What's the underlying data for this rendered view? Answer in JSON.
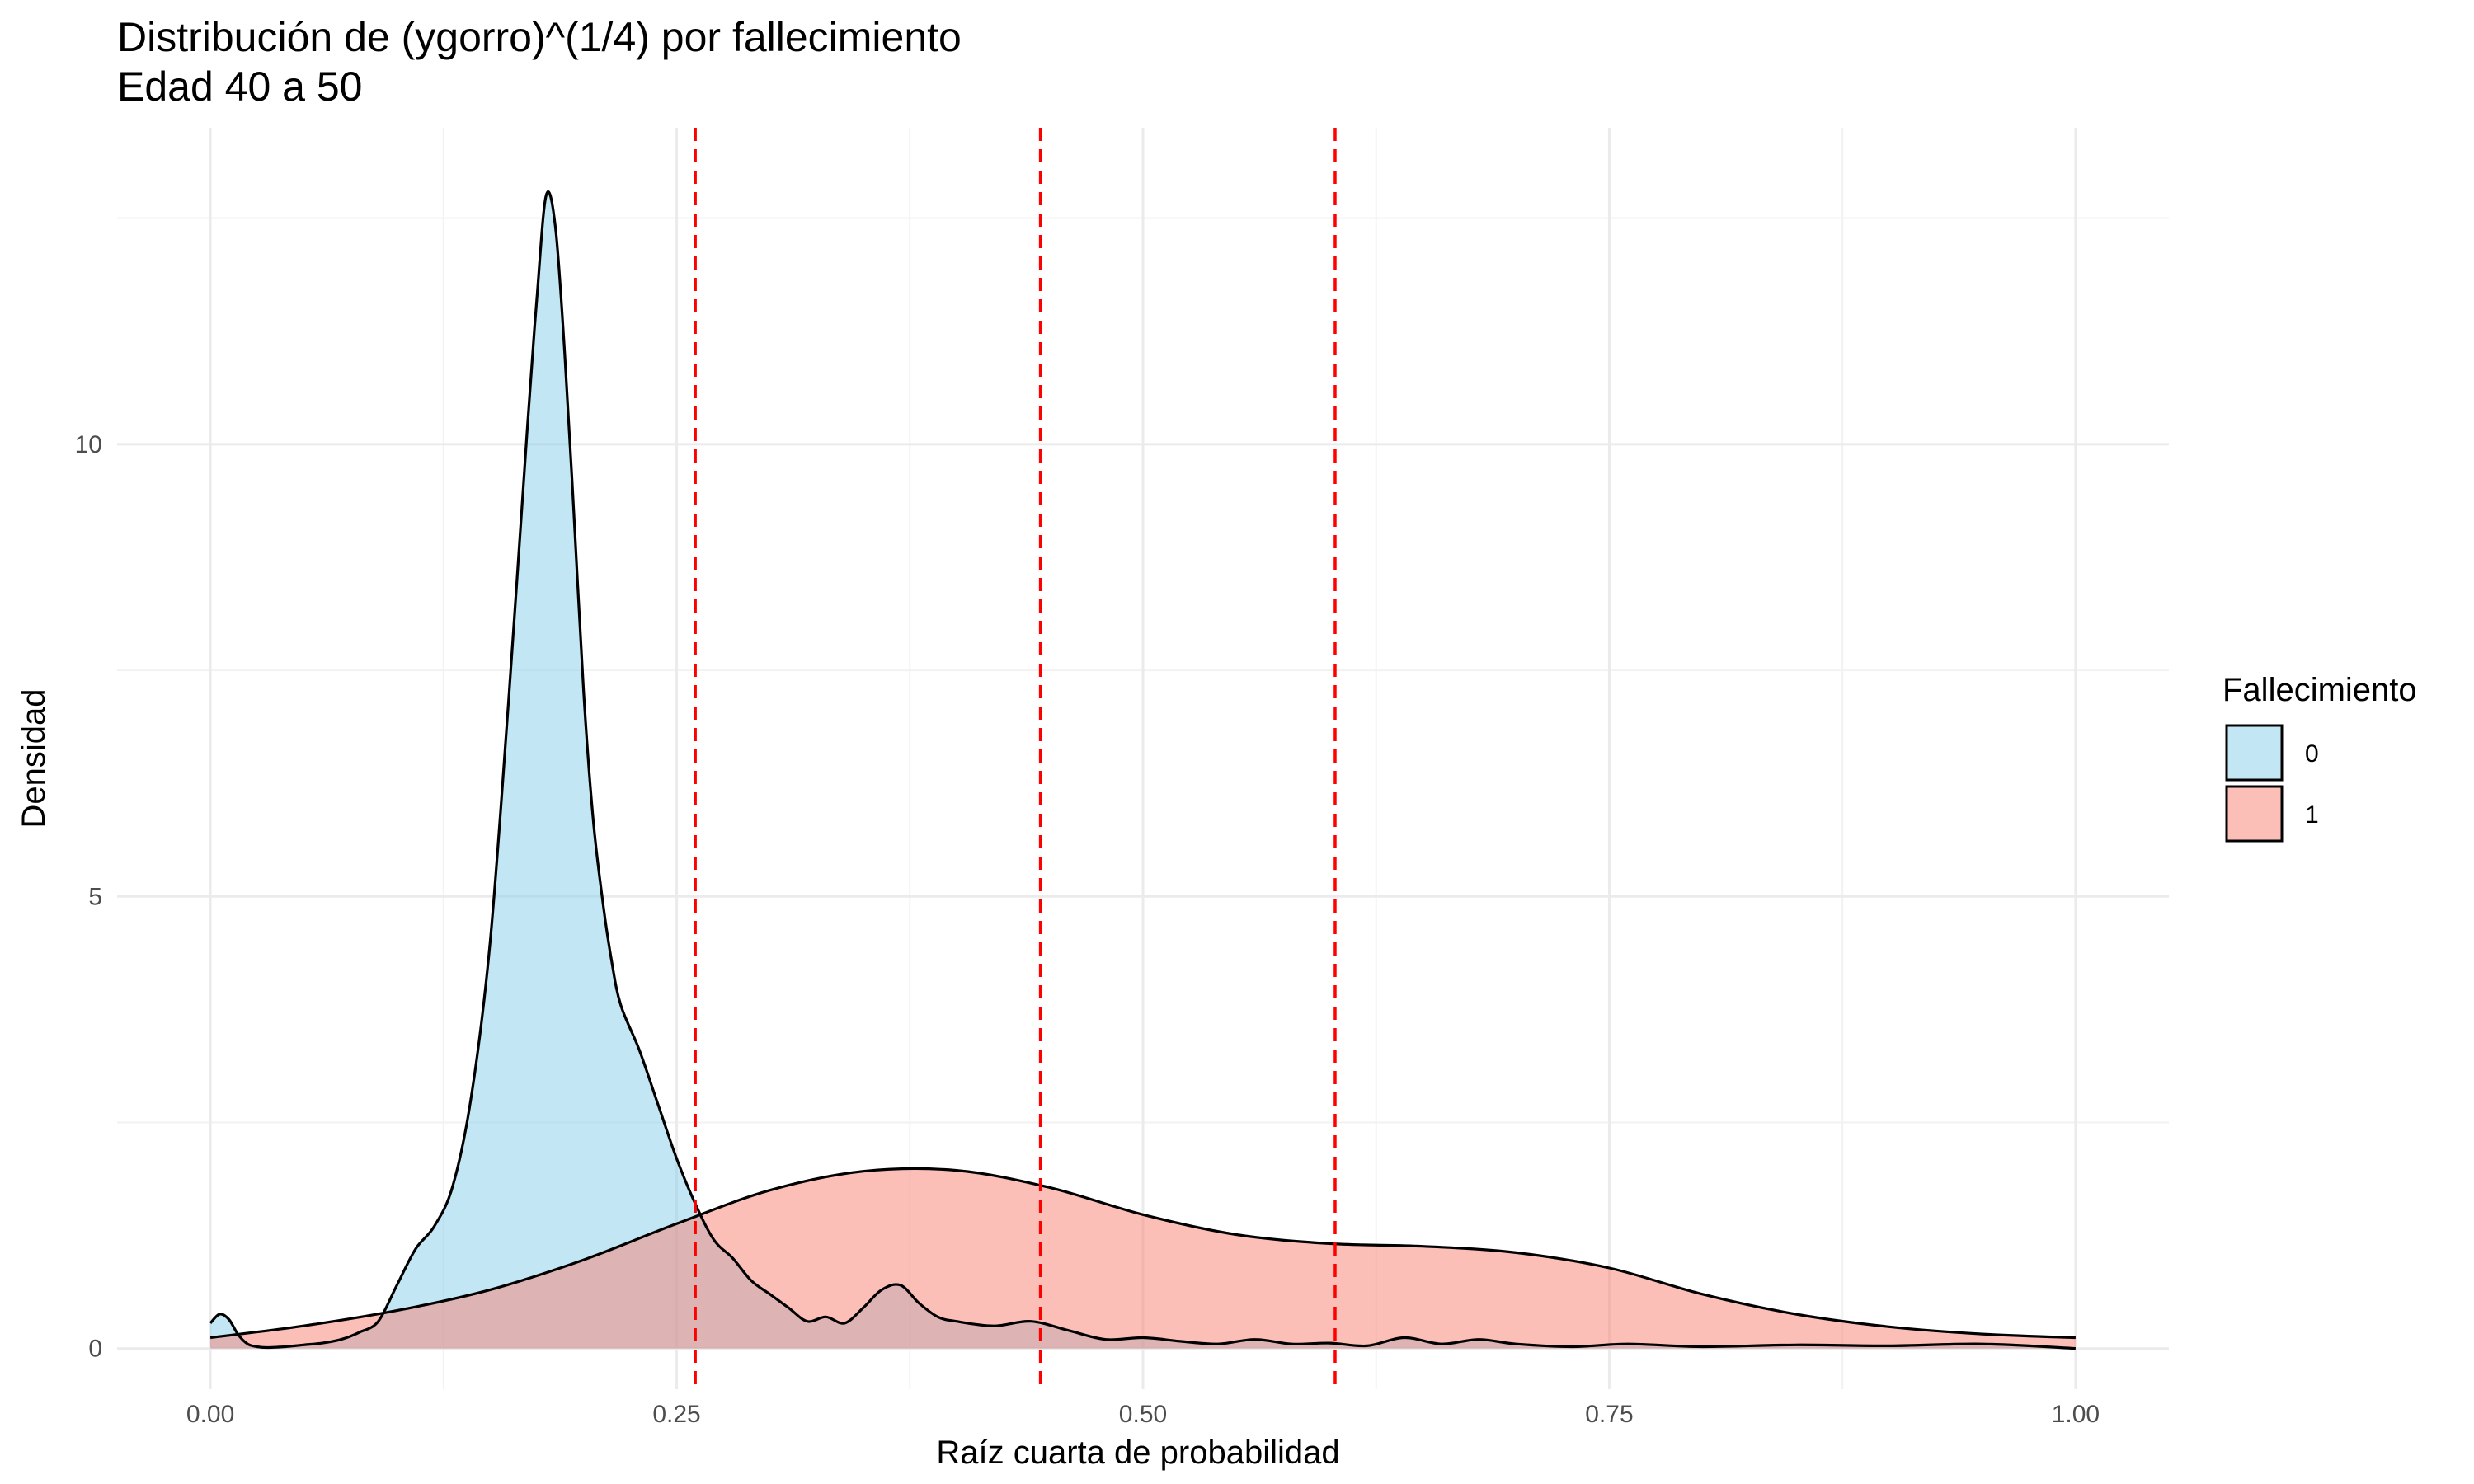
{
  "chart_data": {
    "type": "area",
    "title_lines": [
      "Distribución de (ygorro)^(1/4) por fallecimiento",
      "Edad 40 a 50"
    ],
    "xlabel": "Raíz cuarta de probabilidad",
    "ylabel": "Densidad",
    "xlim": [
      -0.05,
      1.05
    ],
    "ylim": [
      -0.45,
      13.5
    ],
    "x_ticks": [
      0,
      0.25,
      0.5,
      0.75,
      1
    ],
    "x_tick_labels": [
      "0.00",
      "0.25",
      "0.50",
      "0.75",
      "1.00"
    ],
    "y_ticks": [
      0,
      5,
      10
    ],
    "y_tick_labels": [
      "0",
      "5",
      "10"
    ],
    "grid": true,
    "legend": {
      "title": "Fallecimiento",
      "position": "right",
      "entries": [
        {
          "label": "0",
          "color": "#87ceeb"
        },
        {
          "label": "1",
          "color": "#fa8072"
        }
      ]
    },
    "vlines": {
      "values": [
        0.26,
        0.445,
        0.603
      ],
      "color": "#ff0000",
      "style": "dashed"
    },
    "series": [
      {
        "name": "0",
        "color": "#87ceeb",
        "opacity": 0.5,
        "x": [
          0.0,
          0.005,
          0.01,
          0.015,
          0.02,
          0.025,
          0.03,
          0.04,
          0.05,
          0.06,
          0.07,
          0.08,
          0.09,
          0.1,
          0.11,
          0.12,
          0.13,
          0.14,
          0.15,
          0.16,
          0.17,
          0.175,
          0.18,
          0.185,
          0.19,
          0.195,
          0.2,
          0.205,
          0.21,
          0.215,
          0.22,
          0.23,
          0.24,
          0.25,
          0.26,
          0.27,
          0.28,
          0.29,
          0.3,
          0.31,
          0.32,
          0.33,
          0.34,
          0.35,
          0.36,
          0.37,
          0.38,
          0.39,
          0.4,
          0.42,
          0.44,
          0.46,
          0.48,
          0.5,
          0.52,
          0.54,
          0.56,
          0.58,
          0.6,
          0.62,
          0.64,
          0.66,
          0.68,
          0.7,
          0.73,
          0.76,
          0.8,
          0.85,
          0.9,
          0.95,
          1.0
        ],
        "y": [
          0.28,
          0.38,
          0.32,
          0.15,
          0.05,
          0.02,
          0.01,
          0.02,
          0.04,
          0.06,
          0.1,
          0.18,
          0.3,
          0.7,
          1.1,
          1.35,
          1.8,
          2.8,
          4.5,
          7.2,
          10.2,
          11.6,
          12.75,
          12.4,
          11.0,
          9.2,
          7.3,
          5.9,
          5.0,
          4.3,
          3.8,
          3.3,
          2.7,
          2.1,
          1.6,
          1.2,
          1.0,
          0.75,
          0.6,
          0.45,
          0.3,
          0.35,
          0.28,
          0.45,
          0.65,
          0.7,
          0.5,
          0.35,
          0.3,
          0.25,
          0.3,
          0.2,
          0.1,
          0.12,
          0.08,
          0.05,
          0.1,
          0.05,
          0.06,
          0.03,
          0.12,
          0.05,
          0.1,
          0.05,
          0.02,
          0.05,
          0.02,
          0.04,
          0.03,
          0.05,
          0.0
        ]
      },
      {
        "name": "1",
        "color": "#fa8072",
        "opacity": 0.5,
        "x": [
          0.0,
          0.05,
          0.1,
          0.15,
          0.2,
          0.25,
          0.3,
          0.35,
          0.4,
          0.45,
          0.5,
          0.55,
          0.6,
          0.65,
          0.7,
          0.75,
          0.8,
          0.85,
          0.9,
          0.95,
          1.0
        ],
        "y": [
          0.12,
          0.25,
          0.42,
          0.65,
          0.98,
          1.38,
          1.75,
          1.96,
          1.97,
          1.78,
          1.48,
          1.26,
          1.16,
          1.13,
          1.06,
          0.89,
          0.6,
          0.38,
          0.24,
          0.16,
          0.12
        ]
      }
    ]
  }
}
